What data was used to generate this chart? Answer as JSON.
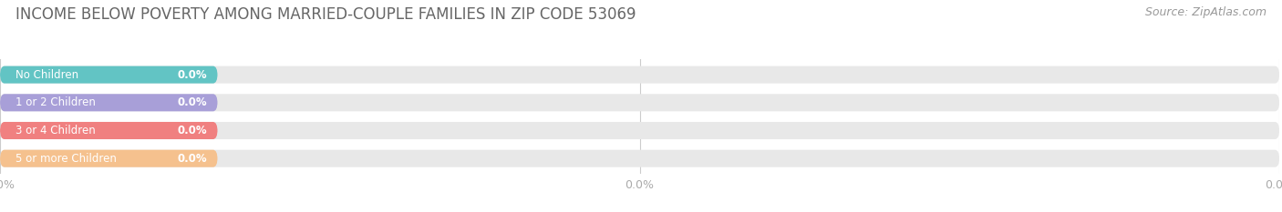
{
  "title": "INCOME BELOW POVERTY AMONG MARRIED-COUPLE FAMILIES IN ZIP CODE 53069",
  "source": "Source: ZipAtlas.com",
  "categories": [
    "No Children",
    "1 or 2 Children",
    "3 or 4 Children",
    "5 or more Children"
  ],
  "values": [
    0.0,
    0.0,
    0.0,
    0.0
  ],
  "bar_colors": [
    "#62c4c4",
    "#a89fd8",
    "#f08080",
    "#f5c18e"
  ],
  "background_color": "#ffffff",
  "bar_bg_color": "#e8e8e8",
  "title_fontsize": 12,
  "label_fontsize": 8.5,
  "tick_fontsize": 9,
  "source_fontsize": 9,
  "tick_color": "#aaaaaa",
  "title_color": "#666666",
  "source_color": "#999999",
  "label_text_color": "#ffffff",
  "value_text_color": "#ffffff",
  "grid_color": "#cccccc"
}
